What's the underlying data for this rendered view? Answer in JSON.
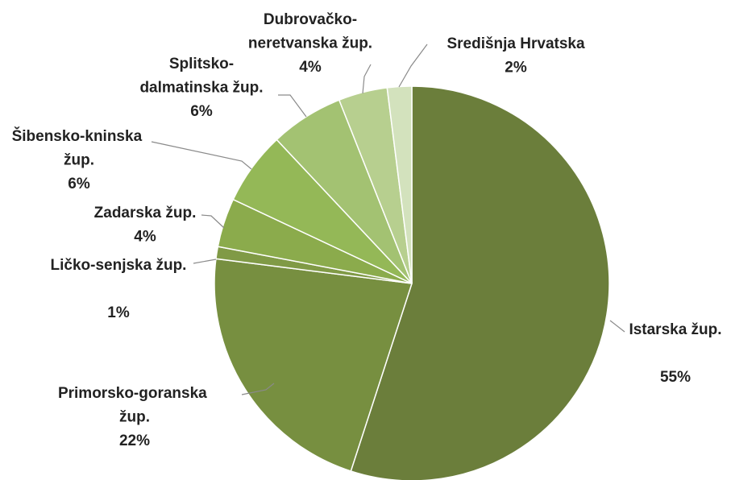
{
  "chart_data": {
    "type": "pie",
    "categories": [
      "Istarska žup.",
      "Primorsko-goranska žup.",
      "Ličko-senjska žup.",
      "Zadarska žup.",
      "Šibensko-kninska žup.",
      "Splitsko-dalmatinska žup.",
      "Dubrovačko-neretvanska žup.",
      "Središnja Hrvatska"
    ],
    "values": [
      55,
      22,
      1,
      4,
      6,
      6,
      4,
      2
    ],
    "value_labels": [
      "55%",
      "22%",
      "1%",
      "4%",
      "6%",
      "6%",
      "4%",
      "2%"
    ],
    "colors": [
      "#6b7e3b",
      "#778f40",
      "#809a46",
      "#8bab4c",
      "#94b857",
      "#a3c272",
      "#b7cf8f",
      "#d3e2bd"
    ]
  }
}
